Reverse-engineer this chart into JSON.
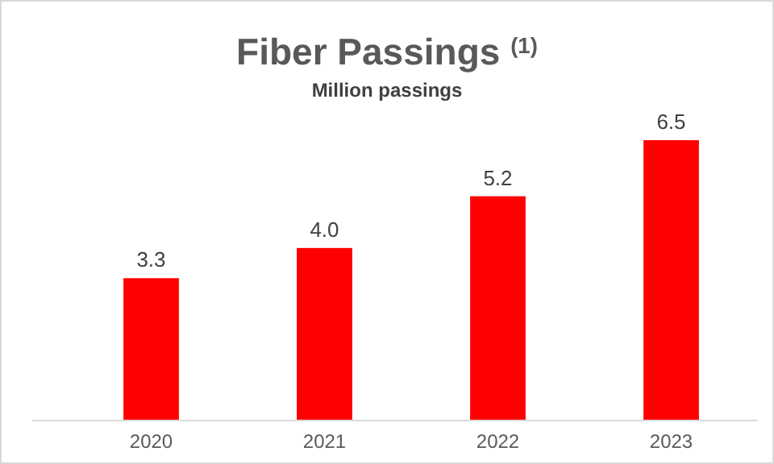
{
  "chart_data": {
    "type": "bar",
    "title": "Fiber Passings $^{(1)}$",
    "subtitle": "Million passings",
    "categories": [
      "2020",
      "2021",
      "2022",
      "2023"
    ],
    "values": [
      3.3,
      4.0,
      5.2,
      6.5
    ],
    "color": "#ff0000",
    "value_labels": [
      "3.3",
      "4.0",
      "5.2",
      "6.5"
    ]
  }
}
